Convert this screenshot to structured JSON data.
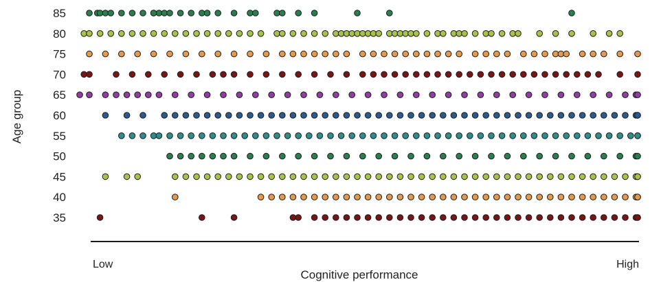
{
  "chart_data": {
    "type": "scatter",
    "title": "",
    "xlabel": "Cognitive performance",
    "ylabel": "Age group",
    "x_low_label": "Low",
    "x_high_label": "High",
    "xlim": [
      0,
      100
    ],
    "categories": [
      "85",
      "80",
      "75",
      "70",
      "65",
      "60",
      "55",
      "50",
      "45",
      "40",
      "35"
    ],
    "grid": false,
    "legend": "none",
    "series": [
      {
        "color": "#2e7d4f",
        "values": [
          0,
          1.5,
          2,
          3,
          4,
          6,
          8,
          10,
          12,
          13,
          14,
          12,
          15,
          17,
          19,
          21,
          22,
          24,
          27,
          30,
          31,
          35,
          36,
          39,
          42,
          50,
          56,
          90
        ]
      },
      {
        "color": "#a9c24a",
        "values": [
          -1,
          0,
          2,
          4,
          6,
          8,
          10,
          12,
          14,
          16,
          18,
          20,
          22,
          24,
          26,
          28,
          30,
          32,
          35,
          36,
          38,
          40,
          42,
          44,
          46,
          47,
          48,
          49,
          50,
          51,
          52,
          53,
          54,
          56,
          57,
          58,
          59,
          60,
          61,
          63,
          65,
          66,
          68,
          69,
          70,
          72,
          74,
          75,
          77,
          79,
          80,
          84,
          87,
          90,
          94,
          97,
          99
        ]
      },
      {
        "color": "#e39a4e",
        "values": [
          0,
          3,
          6,
          9,
          12,
          15,
          18,
          21,
          24,
          27,
          30,
          33,
          36,
          38,
          40,
          42,
          44,
          46,
          48,
          51,
          53,
          55,
          57,
          59,
          61,
          63,
          65,
          67,
          69,
          72,
          74,
          76,
          78,
          81,
          83,
          85,
          87,
          88,
          89,
          92,
          94,
          96,
          99,
          105
        ]
      },
      {
        "color": "#7a1515",
        "values": [
          -1,
          0,
          5,
          8,
          11,
          14,
          17,
          20,
          23,
          25,
          27,
          30,
          33,
          36,
          39,
          42,
          45,
          48,
          51,
          53,
          55,
          57,
          59,
          61,
          63,
          65,
          67,
          69,
          71,
          73,
          75,
          77,
          79,
          81,
          83,
          85,
          87,
          89,
          91,
          93,
          95,
          99,
          105
        ]
      },
      {
        "color": "#8e3fa0",
        "values": [
          -2,
          0,
          3,
          5,
          7,
          9,
          11,
          13,
          16,
          19,
          22,
          25,
          28,
          31,
          34,
          37,
          40,
          43,
          46,
          49,
          52,
          55,
          58,
          61,
          64,
          67,
          70,
          73,
          76,
          79,
          82,
          85,
          88,
          91,
          94,
          97,
          100,
          102,
          104
        ]
      },
      {
        "color": "#2a5b8c",
        "values": [
          3,
          7,
          10,
          14,
          16,
          18,
          20,
          22,
          24,
          26,
          28,
          30,
          32,
          34,
          36,
          38,
          40,
          42,
          44,
          46,
          48,
          50,
          52,
          54,
          56,
          58,
          60,
          62,
          64,
          66,
          68,
          70,
          72,
          74,
          76,
          78,
          80,
          82,
          84,
          86,
          88,
          90,
          92,
          94,
          96,
          98,
          100,
          102,
          104,
          106
        ]
      },
      {
        "color": "#2f8e8c",
        "values": [
          6,
          8,
          10,
          12,
          13,
          15,
          17,
          19,
          21,
          23,
          25,
          27,
          29,
          31,
          33,
          35,
          37,
          39,
          41,
          43,
          45,
          47,
          49,
          51,
          53,
          55,
          57,
          59,
          61,
          63,
          65,
          67,
          69,
          71,
          73,
          75,
          77,
          79,
          81,
          83,
          85,
          87,
          89,
          91,
          93,
          95,
          97,
          99,
          101,
          103,
          105
        ]
      },
      {
        "color": "#2e7d4f",
        "values": [
          15,
          17,
          19,
          21,
          23,
          25,
          27,
          30,
          33,
          36,
          39,
          42,
          45,
          48,
          51,
          54,
          57,
          60,
          63,
          66,
          69,
          72,
          75,
          78,
          81,
          84,
          87,
          90,
          93,
          96,
          99,
          102,
          105
        ]
      },
      {
        "color": "#a9c24a",
        "values": [
          3,
          7,
          9,
          16,
          18,
          20,
          22,
          24,
          26,
          28,
          30,
          32,
          34,
          36,
          38,
          40,
          42,
          44,
          46,
          48,
          50,
          52,
          54,
          56,
          58,
          60,
          62,
          64,
          66,
          68,
          70,
          72,
          74,
          76,
          78,
          80,
          82,
          84,
          86,
          88,
          90,
          92,
          94,
          96,
          98,
          100,
          102,
          104,
          106
        ]
      },
      {
        "color": "#e39a4e",
        "values": [
          16,
          32,
          34,
          36,
          38,
          40,
          42,
          44,
          46,
          48,
          50,
          52,
          54,
          56,
          58,
          60,
          62,
          64,
          66,
          68,
          70,
          72,
          74,
          76,
          78,
          80,
          82,
          84,
          86,
          88,
          90,
          92,
          94,
          96,
          98,
          100,
          102,
          104,
          106
        ]
      },
      {
        "color": "#7a1515",
        "values": [
          2,
          21,
          27,
          38,
          39,
          42,
          44,
          46,
          48,
          50,
          52,
          54,
          56,
          58,
          60,
          62,
          64,
          66,
          68,
          70,
          72,
          74,
          76,
          78,
          80,
          82,
          84,
          86,
          88,
          90,
          92,
          94,
          96,
          98,
          100,
          102,
          104,
          106
        ]
      }
    ]
  }
}
